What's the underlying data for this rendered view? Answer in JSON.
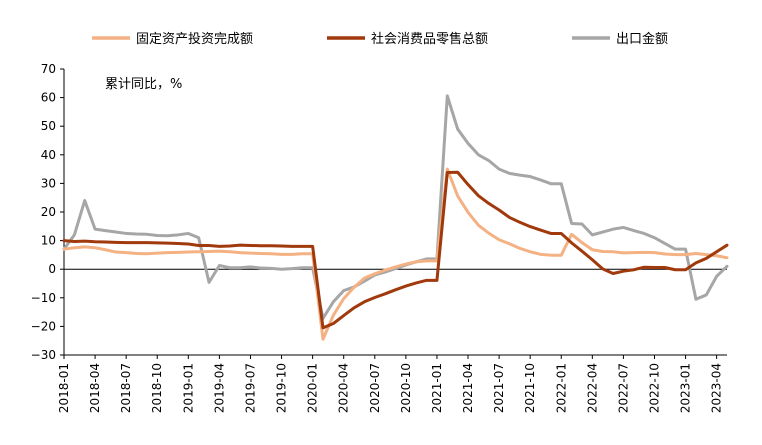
{
  "chart_data": {
    "type": "line",
    "unit_label": "累计同比，%",
    "ylim": [
      -30,
      70
    ],
    "yticks": [
      70,
      60,
      50,
      40,
      30,
      20,
      10,
      0,
      -10,
      -20,
      -30
    ],
    "xtick_labels": [
      "2018-01",
      "2018-04",
      "2018-07",
      "2018-10",
      "2019-01",
      "2019-04",
      "2019-07",
      "2019-10",
      "2020-01",
      "2020-04",
      "2020-07",
      "2020-10",
      "2021-01",
      "2021-04",
      "2021-07",
      "2021-10",
      "2022-01",
      "2022-04",
      "2022-07",
      "2022-10",
      "2023-01",
      "2023-04"
    ],
    "x": [
      "2018-01",
      "2018-02",
      "2018-03",
      "2018-04",
      "2018-05",
      "2018-06",
      "2018-07",
      "2018-08",
      "2018-09",
      "2018-10",
      "2018-11",
      "2018-12",
      "2019-01",
      "2019-02",
      "2019-03",
      "2019-04",
      "2019-05",
      "2019-06",
      "2019-07",
      "2019-08",
      "2019-09",
      "2019-10",
      "2019-11",
      "2019-12",
      "2020-01",
      "2020-02",
      "2020-03",
      "2020-04",
      "2020-05",
      "2020-06",
      "2020-07",
      "2020-08",
      "2020-09",
      "2020-10",
      "2020-11",
      "2020-12",
      "2021-01",
      "2021-02",
      "2021-03",
      "2021-04",
      "2021-05",
      "2021-06",
      "2021-07",
      "2021-08",
      "2021-09",
      "2021-10",
      "2021-11",
      "2021-12",
      "2022-01",
      "2022-02",
      "2022-03",
      "2022-04",
      "2022-05",
      "2022-06",
      "2022-07",
      "2022-08",
      "2022-09",
      "2022-10",
      "2022-11",
      "2022-12",
      "2023-01",
      "2023-02",
      "2023-03",
      "2023-04",
      "2023-05"
    ],
    "legend_position": "top",
    "grid": false,
    "series": [
      {
        "name": "固定资产投资完成额",
        "color": "#F4B183",
        "values": [
          7.0,
          7.5,
          7.8,
          7.5,
          6.8,
          6.0,
          5.8,
          5.5,
          5.4,
          5.6,
          5.8,
          5.9,
          6.0,
          6.1,
          6.2,
          6.3,
          6.1,
          5.8,
          5.6,
          5.5,
          5.4,
          5.2,
          5.2,
          5.4,
          5.4,
          -24.5,
          -16.1,
          -10.3,
          -6.3,
          -3.1,
          -1.6,
          -0.3,
          0.8,
          1.8,
          2.6,
          2.9,
          2.9,
          35.0,
          25.6,
          19.9,
          15.4,
          12.6,
          10.3,
          8.9,
          7.3,
          6.1,
          5.2,
          4.9,
          4.9,
          12.2,
          9.3,
          6.8,
          6.2,
          6.1,
          5.7,
          5.8,
          5.9,
          5.8,
          5.3,
          5.1,
          5.1,
          5.5,
          5.1,
          4.7,
          4.0
        ]
      },
      {
        "name": "社会消费品零售总额",
        "color": "#A0390B",
        "values": [
          10.0,
          9.7,
          9.8,
          9.6,
          9.5,
          9.4,
          9.3,
          9.3,
          9.3,
          9.2,
          9.1,
          9.0,
          8.8,
          8.3,
          8.3,
          8.0,
          8.1,
          8.4,
          8.3,
          8.2,
          8.2,
          8.1,
          8.0,
          8.0,
          8.0,
          -20.5,
          -19.0,
          -16.2,
          -13.5,
          -11.4,
          -9.9,
          -8.6,
          -7.2,
          -5.9,
          -4.8,
          -3.9,
          -3.9,
          33.8,
          33.9,
          29.6,
          25.7,
          23.0,
          20.7,
          18.1,
          16.4,
          14.9,
          13.7,
          12.5,
          12.5,
          9.2,
          6.3,
          3.3,
          0.1,
          -1.5,
          -0.7,
          -0.2,
          0.7,
          0.6,
          0.6,
          -0.2,
          -0.2,
          2.2,
          3.8,
          6.1,
          8.4
        ]
      },
      {
        "name": "出口金额",
        "color": "#A6A6A6",
        "values": [
          7.0,
          12.0,
          24.0,
          14.0,
          13.5,
          13.0,
          12.5,
          12.3,
          12.2,
          11.8,
          11.7,
          12.0,
          12.5,
          11.0,
          -4.6,
          1.3,
          0.5,
          0.5,
          0.8,
          0.4,
          0.3,
          0.0,
          0.2,
          0.5,
          0.5,
          -17.2,
          -11.4,
          -7.5,
          -6.2,
          -4.2,
          -2.0,
          -1.0,
          0.2,
          1.5,
          2.6,
          3.6,
          3.6,
          60.6,
          49.0,
          44.0,
          40.0,
          38.0,
          35.0,
          33.5,
          32.9,
          32.4,
          31.2,
          29.9,
          29.9,
          16.0,
          15.8,
          12.0,
          13.0,
          14.0,
          14.6,
          13.5,
          12.5,
          11.0,
          9.0,
          7.0,
          7.0,
          -10.5,
          -9.0,
          -2.5,
          1.0
        ]
      }
    ]
  }
}
